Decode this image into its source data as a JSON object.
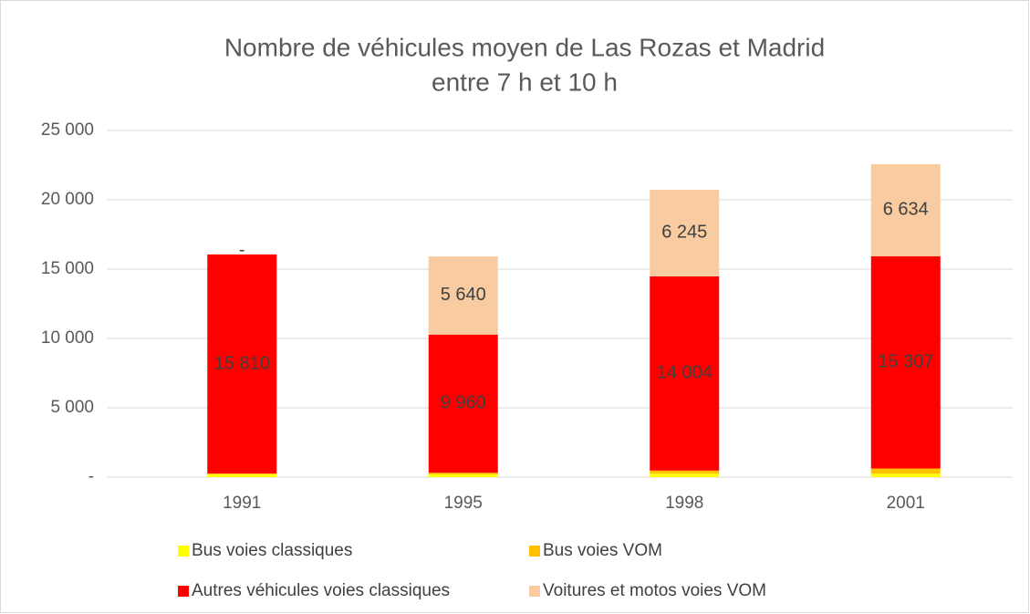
{
  "chart_data": {
    "type": "bar",
    "stacked": true,
    "title": [
      "Nombre de véhicules moyen de Las Rozas et Madrid",
      "entre 7 h et 10 h"
    ],
    "categories": [
      "1991",
      "1995",
      "1998",
      "2001"
    ],
    "series": [
      {
        "name": "Bus voies classiques",
        "color": "#ffff00",
        "values": [
          250,
          200,
          250,
          250
        ]
      },
      {
        "name": "Bus voies VOM",
        "color": "#ffc000",
        "values": [
          0,
          120,
          225,
          375
        ]
      },
      {
        "name": "Autres véhicules voies classiques",
        "color": "#ff0000",
        "values": [
          15810,
          9960,
          14004,
          15307
        ],
        "value_labels": [
          "15 810",
          "9 960",
          "14 004",
          "15 307"
        ]
      },
      {
        "name": "Voitures et motos voies VOM",
        "color": "#f8cba0",
        "values": [
          0,
          5640,
          6245,
          6634
        ],
        "value_labels": [
          "-",
          "5 640",
          "6 245",
          "6 634"
        ]
      }
    ],
    "ylim": [
      0,
      25000
    ],
    "yticks": [
      {
        "value": 0,
        "label": "-"
      },
      {
        "value": 5000,
        "label": "5 000"
      },
      {
        "value": 10000,
        "label": "10 000"
      },
      {
        "value": 15000,
        "label": "15 000"
      },
      {
        "value": 20000,
        "label": "20 000"
      },
      {
        "value": 25000,
        "label": "25 000"
      }
    ],
    "grid": true,
    "legend": "bottom"
  }
}
